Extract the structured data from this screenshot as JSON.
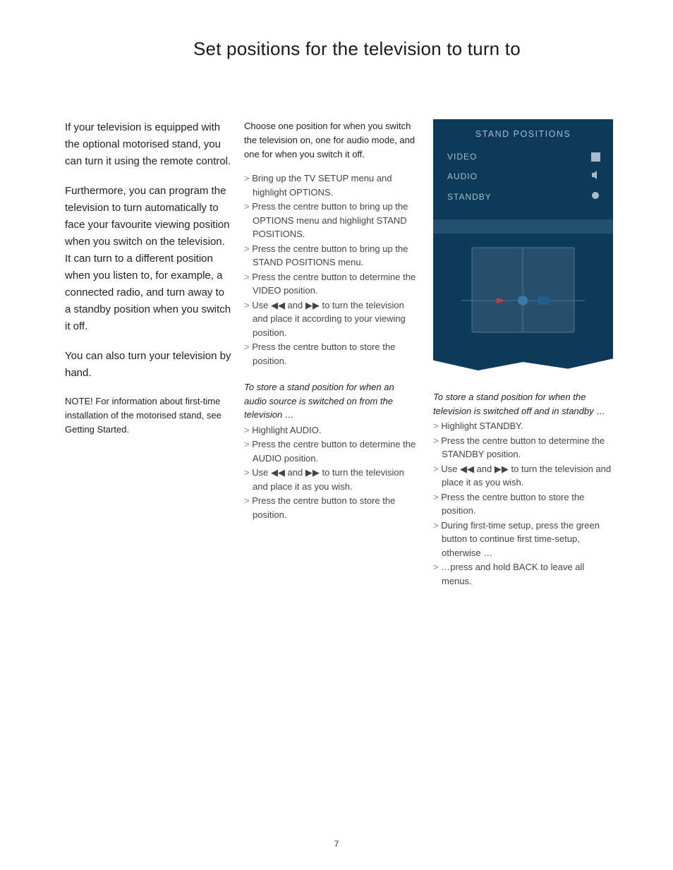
{
  "page": {
    "title": "Set positions for the television to turn to",
    "number": "7"
  },
  "col1": {
    "p1": "If your television is equipped with the optional motorised stand, you can turn it using the remote control.",
    "p2": "Furthermore, you can program the television to turn automatically to face your favourite viewing position when you switch on the television. It can turn to a different position when you listen to, for example, a connected radio, and turn away to a standby position when you switch it off.",
    "p3": "You can also turn your television by hand.",
    "note": "NOTE! For information about first-time installation of the motorised stand, see Getting Started."
  },
  "col2": {
    "intro": "Choose one position for when you switch the television on, one for audio mode, and one for when you switch it off.",
    "steps": [
      "Bring up the TV SETUP menu and highlight OPTIONS.",
      "Press the <b>centre</b> button to bring up the OPTIONS menu and highlight STAND POSITIONS.",
      "Press the <b>centre</b> button to bring up the STAND POSITIONS menu.",
      "Press the <b>centre</b> button to determine the VIDEO position.",
      "Use ◀◀ and ▶▶ to turn the television and place it according to your viewing position.",
      "Press the <b>centre</b> button to store the position."
    ],
    "sub1_title": "To store a stand position for when an audio source is switched on from the television …",
    "sub1_steps": [
      "Highlight AUDIO.",
      "Press the <b>centre</b> button to determine the AUDIO position.",
      "Use ◀◀ and ▶▶ to turn the television and place it as you wish.",
      "Press the <b>centre</b> button to store the position."
    ]
  },
  "menu": {
    "title": "STAND POSITIONS",
    "rows": [
      "VIDEO",
      "AUDIO",
      "STANDBY"
    ]
  },
  "col3": {
    "sub_title": "To store a stand position for when the television is switched off and in standby …",
    "steps": [
      "Highlight STANDBY.",
      "Press the <b>centre</b> button to determine the STANDBY position.",
      "Use ◀◀ and ▶▶ to turn the television and place it as you wish.",
      "Press the <b>centre</b> button to store the position.",
      "During first-time setup, press the <b>green</b> button to continue first time-setup, otherwise …",
      "…press and hold <b>BACK</b> to leave all menus."
    ]
  },
  "diagram": {
    "colors": {
      "bg": "#0e3a5a",
      "tv_fill": "#274f6b",
      "tv_stroke": "#4a7690",
      "handle_red": "#c9384a",
      "handle_blue": "#1f5f90",
      "dot": "#3a7aa8"
    }
  }
}
